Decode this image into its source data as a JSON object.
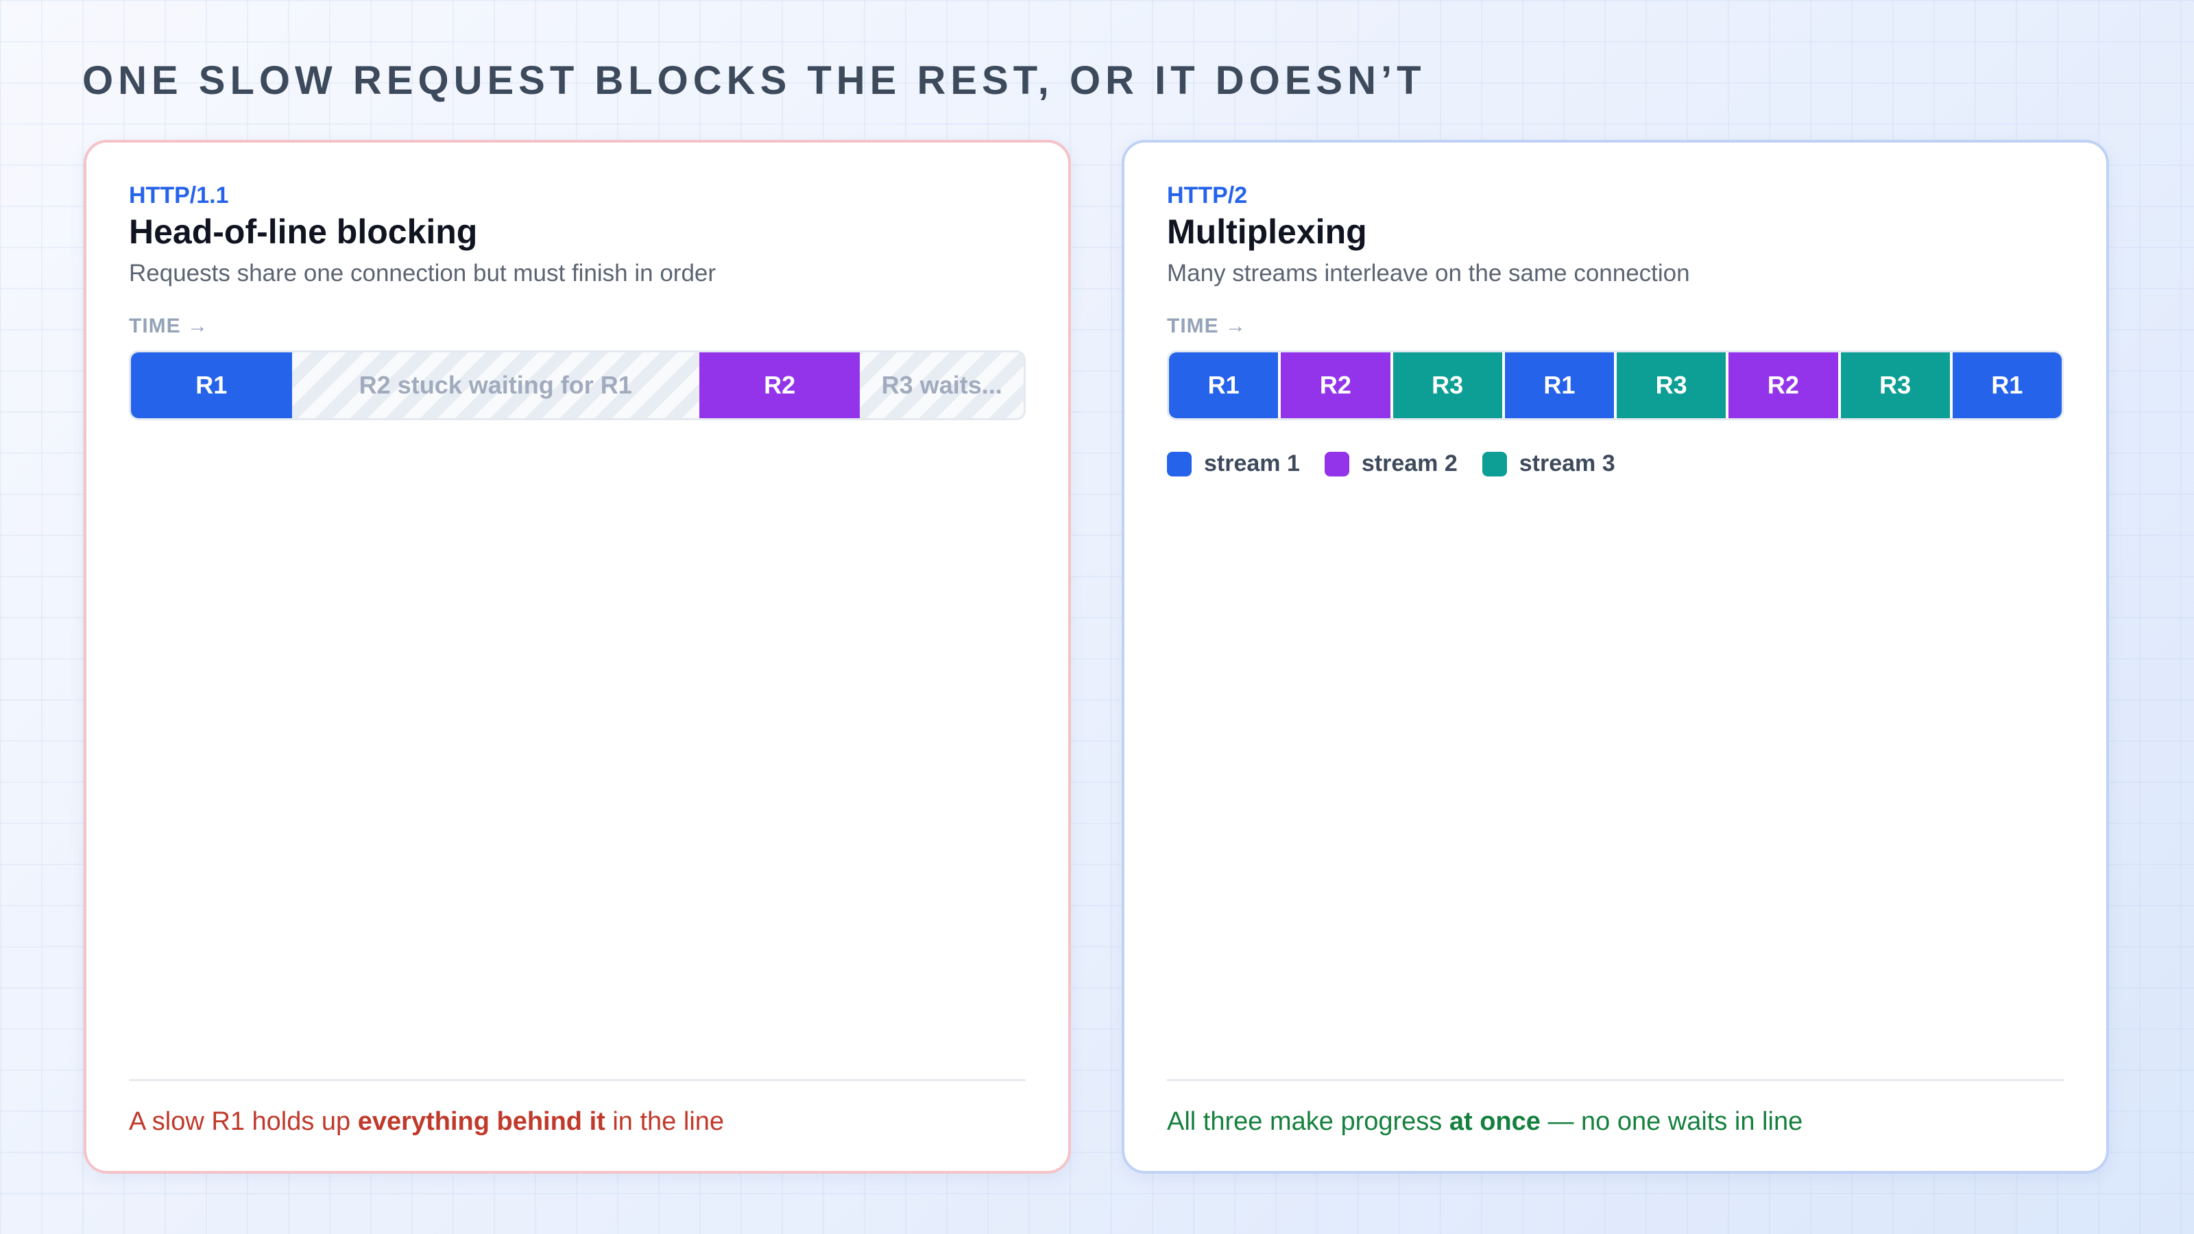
{
  "title": "ONE SLOW REQUEST BLOCKS THE REST, OR IT DOESN’T",
  "panels": [
    {
      "label": "HTTP/1.1",
      "heading": "Head-of-line blocking",
      "subtitle": "Requests share one connection but must finish in order",
      "time_label": "TIME →",
      "segments": [
        {
          "text": "R1",
          "color": "#2563eb",
          "striped": false
        },
        {
          "text": "R2 stuck waiting for R1",
          "color": "#e8edf4",
          "striped": true
        },
        {
          "text": "R2",
          "color": "#9333ea",
          "striped": false
        },
        {
          "text": "R3 waits...",
          "color": "#e8edf4",
          "striped": true
        }
      ],
      "legend": [],
      "footer": {
        "before": "A slow R1 holds up ",
        "emphasis": "everything behind it",
        "after": " in the line",
        "color": "#c0392b"
      }
    },
    {
      "label": "HTTP/2",
      "heading": "Multiplexing",
      "subtitle": "Many streams interleave on the same connection",
      "time_label": "TIME →",
      "segments": [
        {
          "text": "R1",
          "color": "#2563eb",
          "striped": false
        },
        {
          "text": "R2",
          "color": "#9333ea",
          "striped": false
        },
        {
          "text": "R3",
          "color": "#0d9e96",
          "striped": false
        },
        {
          "text": "R1",
          "color": "#2563eb",
          "striped": false
        },
        {
          "text": "R3",
          "color": "#0d9e96",
          "striped": false
        },
        {
          "text": "R2",
          "color": "#9333ea",
          "striped": false
        },
        {
          "text": "R3",
          "color": "#0d9e96",
          "striped": false
        },
        {
          "text": "R1",
          "color": "#2563eb",
          "striped": false
        }
      ],
      "legend": [
        {
          "name": "stream 1",
          "color": "#2563eb"
        },
        {
          "name": "stream 2",
          "color": "#9333ea"
        },
        {
          "name": "stream 3",
          "color": "#0d9e96"
        }
      ],
      "footer": {
        "before": "All three make progress ",
        "emphasis": "at once",
        "after": " — no one waits in line",
        "color": "#15803d"
      }
    }
  ]
}
